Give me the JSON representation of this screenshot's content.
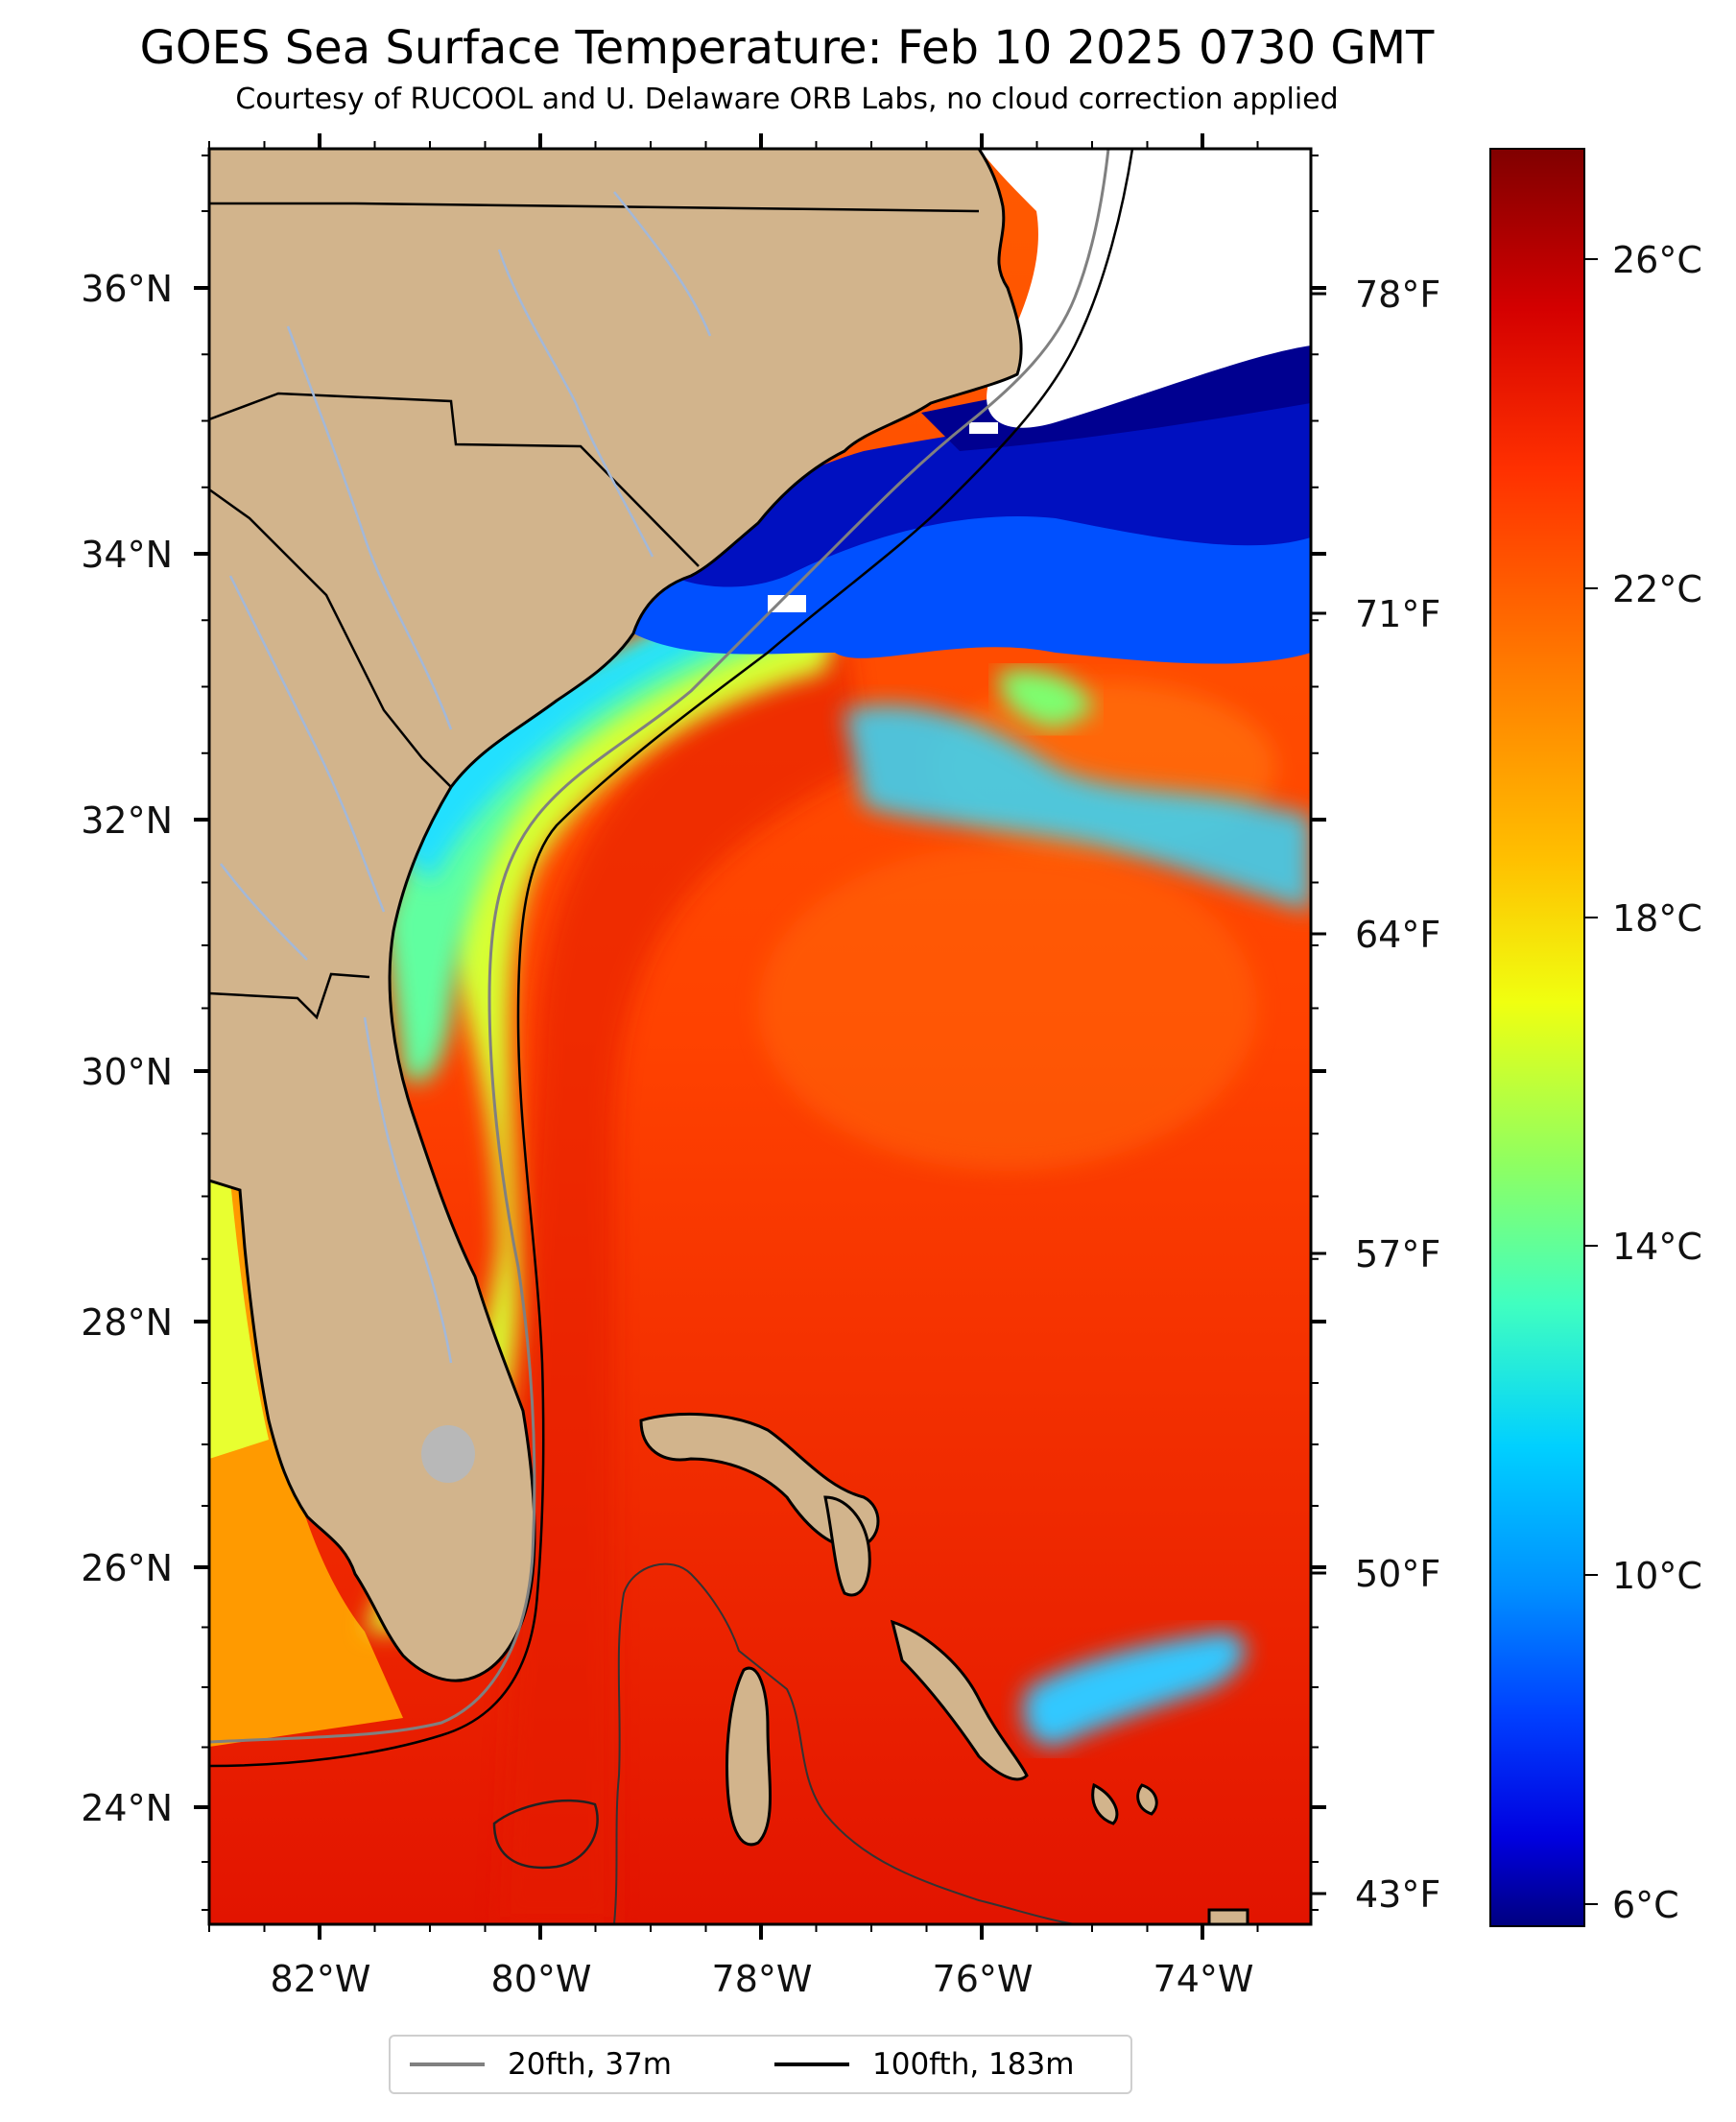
{
  "title": "GOES Sea Surface Temperature: Feb 10 2025 0730 GMT",
  "subtitle": "Courtesy of RUCOOL and U. Delaware ORB Labs, no cloud correction applied",
  "map": {
    "lat_labels": [
      "36°N",
      "34°N",
      "32°N",
      "30°N",
      "28°N",
      "26°N",
      "24°N"
    ],
    "lon_labels": [
      "82°W",
      "80°W",
      "78°W",
      "76°W",
      "74°W"
    ],
    "fahrenheit_labels": [
      "78°F",
      "71°F",
      "64°F",
      "57°F",
      "50°F",
      "43°F"
    ],
    "colors": {
      "land": "#d2b48c",
      "river": "#a3b8d8",
      "contour_20fth": "#808080",
      "contour_100fth": "#000000"
    }
  },
  "colorbar": {
    "labels": [
      "26°C",
      "22°C",
      "18°C",
      "14°C",
      "10°C",
      "6°C"
    ],
    "gradient_colors": [
      "#800000",
      "#d40000",
      "#ff3000",
      "#ff8000",
      "#ffc000",
      "#f0ff10",
      "#90ff60",
      "#40ffc0",
      "#00d0ff",
      "#0090ff",
      "#0040ff",
      "#0000e0",
      "#000080"
    ]
  },
  "legend": {
    "items": [
      {
        "label": "20fth, 37m",
        "color": "#808080"
      },
      {
        "label": "100fth, 183m",
        "color": "#000000"
      }
    ]
  }
}
